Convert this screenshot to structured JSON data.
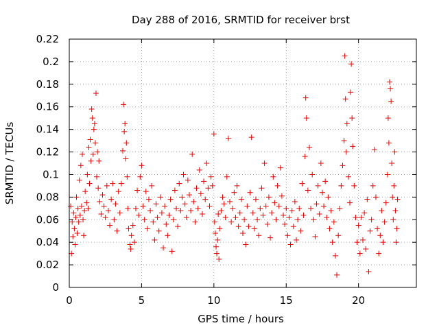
{
  "chart_data": {
    "type": "scatter",
    "title": "Day 288 of 2016, SRMTID for receiver brst",
    "xlabel": "GPS time / hours",
    "ylabel": "SRMTID / TECUs",
    "xlim": [
      0,
      24
    ],
    "ylim": [
      0,
      0.22
    ],
    "x_ticks": [
      0,
      5,
      10,
      15,
      20
    ],
    "x_tick_labels": [
      "0",
      "5",
      "10",
      "15",
      "20"
    ],
    "y_ticks": [
      0,
      0.02,
      0.04,
      0.06,
      0.08,
      0.1,
      0.12,
      0.14,
      0.16,
      0.18,
      0.2,
      0.22
    ],
    "y_tick_labels": [
      "0",
      "0.02",
      "0.04",
      "0.06",
      "0.08",
      "0.1",
      "0.12",
      "0.14",
      "0.16",
      "0.18",
      "0.2",
      "0.22"
    ],
    "grid": true,
    "marker": "+",
    "color": "#e00000",
    "series": [
      {
        "name": "SRMTID",
        "points": [
          [
            0.1,
            0.072
          ],
          [
            0.15,
            0.03
          ],
          [
            0.2,
            0.058
          ],
          [
            0.25,
            0.045
          ],
          [
            0.3,
            0.066
          ],
          [
            0.35,
            0.052
          ],
          [
            0.4,
            0.038
          ],
          [
            0.45,
            0.062
          ],
          [
            0.5,
            0.08
          ],
          [
            0.55,
            0.048
          ],
          [
            0.6,
            0.07
          ],
          [
            0.65,
            0.058
          ],
          [
            0.7,
            0.095
          ],
          [
            0.75,
            0.064
          ],
          [
            0.8,
            0.108
          ],
          [
            0.85,
            0.072
          ],
          [
            0.9,
            0.118
          ],
          [
            0.95,
            0.06
          ],
          [
            1.0,
            0.046
          ],
          [
            1.05,
            0.068
          ],
          [
            1.1,
            0.085
          ],
          [
            1.2,
            0.075
          ],
          [
            1.25,
            0.1
          ],
          [
            1.3,
            0.07
          ],
          [
            1.35,
            0.124
          ],
          [
            1.4,
            0.092
          ],
          [
            1.45,
            0.131
          ],
          [
            1.5,
            0.112
          ],
          [
            1.55,
            0.158
          ],
          [
            1.6,
            0.15
          ],
          [
            1.65,
            0.118
          ],
          [
            1.7,
            0.14
          ],
          [
            1.75,
            0.145
          ],
          [
            1.8,
            0.128
          ],
          [
            1.85,
            0.172
          ],
          [
            1.9,
            0.098
          ],
          [
            1.95,
            0.12
          ],
          [
            2.0,
            0.088
          ],
          [
            2.05,
            0.112
          ],
          [
            2.1,
            0.076
          ],
          [
            2.2,
            0.065
          ],
          [
            2.3,
            0.082
          ],
          [
            2.4,
            0.072
          ],
          [
            2.5,
            0.062
          ],
          [
            2.6,
            0.09
          ],
          [
            2.7,
            0.068
          ],
          [
            2.8,
            0.055
          ],
          [
            2.9,
            0.078
          ],
          [
            3.0,
            0.092
          ],
          [
            3.1,
            0.06
          ],
          [
            3.2,
            0.074
          ],
          [
            3.3,
            0.05
          ],
          [
            3.4,
            0.085
          ],
          [
            3.5,
            0.066
          ],
          [
            3.6,
            0.092
          ],
          [
            3.7,
            0.121
          ],
          [
            3.75,
            0.162
          ],
          [
            3.8,
            0.138
          ],
          [
            3.85,
            0.145
          ],
          [
            3.9,
            0.114
          ],
          [
            3.95,
            0.128
          ],
          [
            4.0,
            0.098
          ],
          [
            4.05,
            0.07
          ],
          [
            4.1,
            0.052
          ],
          [
            4.2,
            0.038
          ],
          [
            4.25,
            0.034
          ],
          [
            4.3,
            0.046
          ],
          [
            4.4,
            0.055
          ],
          [
            4.5,
            0.04
          ],
          [
            4.6,
            0.07
          ],
          [
            4.7,
            0.086
          ],
          [
            4.8,
            0.064
          ],
          [
            4.9,
            0.098
          ],
          [
            5.0,
            0.108
          ],
          [
            5.1,
            0.072
          ],
          [
            5.2,
            0.06
          ],
          [
            5.3,
            0.085
          ],
          [
            5.4,
            0.052
          ],
          [
            5.5,
            0.078
          ],
          [
            5.6,
            0.068
          ],
          [
            5.7,
            0.09
          ],
          [
            5.8,
            0.058
          ],
          [
            5.9,
            0.042
          ],
          [
            6.0,
            0.074
          ],
          [
            6.1,
            0.062
          ],
          [
            6.2,
            0.05
          ],
          [
            6.3,
            0.08
          ],
          [
            6.4,
            0.066
          ],
          [
            6.5,
            0.035
          ],
          [
            6.6,
            0.072
          ],
          [
            6.7,
            0.056
          ],
          [
            6.8,
            0.046
          ],
          [
            6.9,
            0.064
          ],
          [
            7.0,
            0.078
          ],
          [
            7.1,
            0.032
          ],
          [
            7.2,
            0.06
          ],
          [
            7.3,
            0.086
          ],
          [
            7.4,
            0.07
          ],
          [
            7.5,
            0.054
          ],
          [
            7.6,
            0.092
          ],
          [
            7.7,
            0.068
          ],
          [
            7.8,
            0.08
          ],
          [
            7.9,
            0.1
          ],
          [
            8.0,
            0.074
          ],
          [
            8.1,
            0.062
          ],
          [
            8.2,
            0.095
          ],
          [
            8.3,
            0.082
          ],
          [
            8.4,
            0.068
          ],
          [
            8.5,
            0.118
          ],
          [
            8.6,
            0.076
          ],
          [
            8.7,
            0.058
          ],
          [
            8.8,
            0.088
          ],
          [
            8.9,
            0.07
          ],
          [
            9.0,
            0.104
          ],
          [
            9.1,
            0.083
          ],
          [
            9.2,
            0.065
          ],
          [
            9.3,
            0.094
          ],
          [
            9.4,
            0.078
          ],
          [
            9.5,
            0.11
          ],
          [
            9.6,
            0.088
          ],
          [
            9.7,
            0.072
          ],
          [
            9.8,
            0.098
          ],
          [
            9.9,
            0.09
          ],
          [
            10.0,
            0.136
          ],
          [
            10.05,
            0.058
          ],
          [
            10.1,
            0.048
          ],
          [
            10.15,
            0.036
          ],
          [
            10.2,
            0.03
          ],
          [
            10.25,
            0.042
          ],
          [
            10.3,
            0.065
          ],
          [
            10.35,
            0.025
          ],
          [
            10.4,
            0.052
          ],
          [
            10.5,
            0.068
          ],
          [
            10.6,
            0.08
          ],
          [
            10.7,
            0.074
          ],
          [
            10.8,
            0.062
          ],
          [
            10.9,
            0.098
          ],
          [
            11.0,
            0.132
          ],
          [
            11.1,
            0.076
          ],
          [
            11.2,
            0.058
          ],
          [
            11.3,
            0.07
          ],
          [
            11.4,
            0.084
          ],
          [
            11.5,
            0.062
          ],
          [
            11.6,
            0.09
          ],
          [
            11.7,
            0.054
          ],
          [
            11.8,
            0.066
          ],
          [
            11.9,
            0.078
          ],
          [
            12.0,
            0.048
          ],
          [
            12.1,
            0.06
          ],
          [
            12.2,
            0.038
          ],
          [
            12.3,
            0.072
          ],
          [
            12.4,
            0.054
          ],
          [
            12.5,
            0.084
          ],
          [
            12.6,
            0.133
          ],
          [
            12.7,
            0.066
          ],
          [
            12.8,
            0.052
          ],
          [
            12.9,
            0.078
          ],
          [
            13.0,
            0.06
          ],
          [
            13.1,
            0.046
          ],
          [
            13.2,
            0.07
          ],
          [
            13.3,
            0.088
          ],
          [
            13.4,
            0.064
          ],
          [
            13.5,
            0.11
          ],
          [
            13.6,
            0.072
          ],
          [
            13.7,
            0.056
          ],
          [
            13.8,
            0.08
          ],
          [
            13.9,
            0.044
          ],
          [
            14.0,
            0.066
          ],
          [
            14.1,
            0.098
          ],
          [
            14.2,
            0.075
          ],
          [
            14.3,
            0.06
          ],
          [
            14.4,
            0.09
          ],
          [
            14.5,
            0.072
          ],
          [
            14.6,
            0.106
          ],
          [
            14.7,
            0.081
          ],
          [
            14.8,
            0.064
          ],
          [
            14.9,
            0.056
          ],
          [
            15.0,
            0.07
          ],
          [
            15.1,
            0.046
          ],
          [
            15.2,
            0.062
          ],
          [
            15.3,
            0.038
          ],
          [
            15.4,
            0.068
          ],
          [
            15.5,
            0.054
          ],
          [
            15.6,
            0.076
          ],
          [
            15.7,
            0.042
          ],
          [
            15.8,
            0.06
          ],
          [
            15.9,
            0.07
          ],
          [
            16.0,
            0.05
          ],
          [
            16.1,
            0.092
          ],
          [
            16.2,
            0.064
          ],
          [
            16.3,
            0.116
          ],
          [
            16.35,
            0.168
          ],
          [
            16.4,
            0.15
          ],
          [
            16.5,
            0.086
          ],
          [
            16.6,
            0.124
          ],
          [
            16.7,
            0.07
          ],
          [
            16.8,
            0.1
          ],
          [
            16.9,
            0.06
          ],
          [
            17.0,
            0.045
          ],
          [
            17.1,
            0.074
          ],
          [
            17.2,
            0.09
          ],
          [
            17.3,
            0.065
          ],
          [
            17.4,
            0.11
          ],
          [
            17.5,
            0.084
          ],
          [
            17.6,
            0.072
          ],
          [
            17.7,
            0.094
          ],
          [
            17.8,
            0.062
          ],
          [
            17.9,
            0.08
          ],
          [
            18.0,
            0.052
          ],
          [
            18.1,
            0.068
          ],
          [
            18.2,
            0.04
          ],
          [
            18.3,
            0.058
          ],
          [
            18.4,
            0.028
          ],
          [
            18.5,
            0.011
          ],
          [
            18.6,
            0.046
          ],
          [
            18.7,
            0.07
          ],
          [
            18.8,
            0.09
          ],
          [
            18.9,
            0.108
          ],
          [
            19.0,
            0.13
          ],
          [
            19.05,
            0.205
          ],
          [
            19.1,
            0.167
          ],
          [
            19.15,
            0.12
          ],
          [
            19.2,
            0.145
          ],
          [
            19.3,
            0.098
          ],
          [
            19.4,
            0.075
          ],
          [
            19.45,
            0.173
          ],
          [
            19.5,
            0.198
          ],
          [
            19.55,
            0.15
          ],
          [
            19.6,
            0.125
          ],
          [
            19.7,
            0.09
          ],
          [
            19.8,
            0.062
          ],
          [
            19.9,
            0.04
          ],
          [
            20.0,
            0.055
          ],
          [
            20.1,
            0.03
          ],
          [
            20.2,
            0.062
          ],
          [
            20.3,
            0.042
          ],
          [
            20.4,
            0.066
          ],
          [
            20.5,
            0.034
          ],
          [
            20.6,
            0.078
          ],
          [
            20.7,
            0.014
          ],
          [
            20.8,
            0.05
          ],
          [
            20.9,
            0.06
          ],
          [
            21.0,
            0.09
          ],
          [
            21.1,
            0.122
          ],
          [
            21.2,
            0.08
          ],
          [
            21.3,
            0.052
          ],
          [
            21.4,
            0.03
          ],
          [
            21.5,
            0.046
          ],
          [
            21.6,
            0.068
          ],
          [
            21.7,
            0.04
          ],
          [
            21.8,
            0.058
          ],
          [
            21.9,
            0.075
          ],
          [
            22.0,
            0.1
          ],
          [
            22.05,
            0.15
          ],
          [
            22.1,
            0.128
          ],
          [
            22.15,
            0.182
          ],
          [
            22.2,
            0.176
          ],
          [
            22.25,
            0.165
          ],
          [
            22.3,
            0.11
          ],
          [
            22.35,
            0.08
          ],
          [
            22.4,
            0.06
          ],
          [
            22.45,
            0.09
          ],
          [
            22.5,
            0.12
          ],
          [
            22.55,
            0.068
          ],
          [
            22.6,
            0.04
          ],
          [
            22.65,
            0.052
          ],
          [
            22.7,
            0.078
          ]
        ]
      }
    ]
  }
}
